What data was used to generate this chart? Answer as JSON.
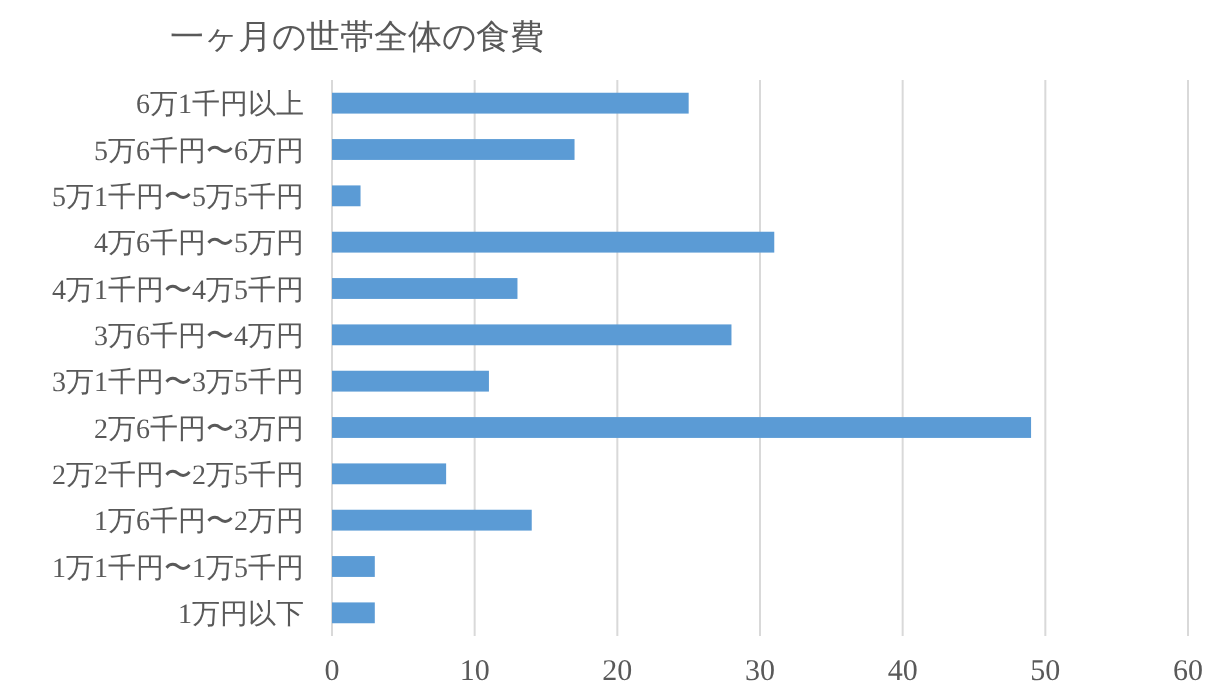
{
  "chart_data": {
    "type": "bar",
    "orientation": "horizontal",
    "title": "一ヶ月の世帯全体の食費",
    "categories": [
      "6万1千円以上",
      "5万6千円〜6万円",
      "5万1千円〜5万5千円",
      "4万6千円〜5万円",
      "4万1千円〜4万5千円",
      "3万6千円〜4万円",
      "3万1千円〜3万5千円",
      "2万6千円〜3万円",
      "2万2千円〜2万5千円",
      "1万6千円〜2万円",
      "1万1千円〜1万5千円",
      "1万円以下"
    ],
    "values": [
      25,
      17,
      2,
      31,
      13,
      28,
      11,
      49,
      8,
      14,
      3,
      3
    ],
    "color": "#5b9bd5",
    "xlim": [
      0,
      60
    ],
    "xticks": [
      0,
      10,
      20,
      30,
      40,
      50,
      60
    ],
    "grid": "x"
  }
}
